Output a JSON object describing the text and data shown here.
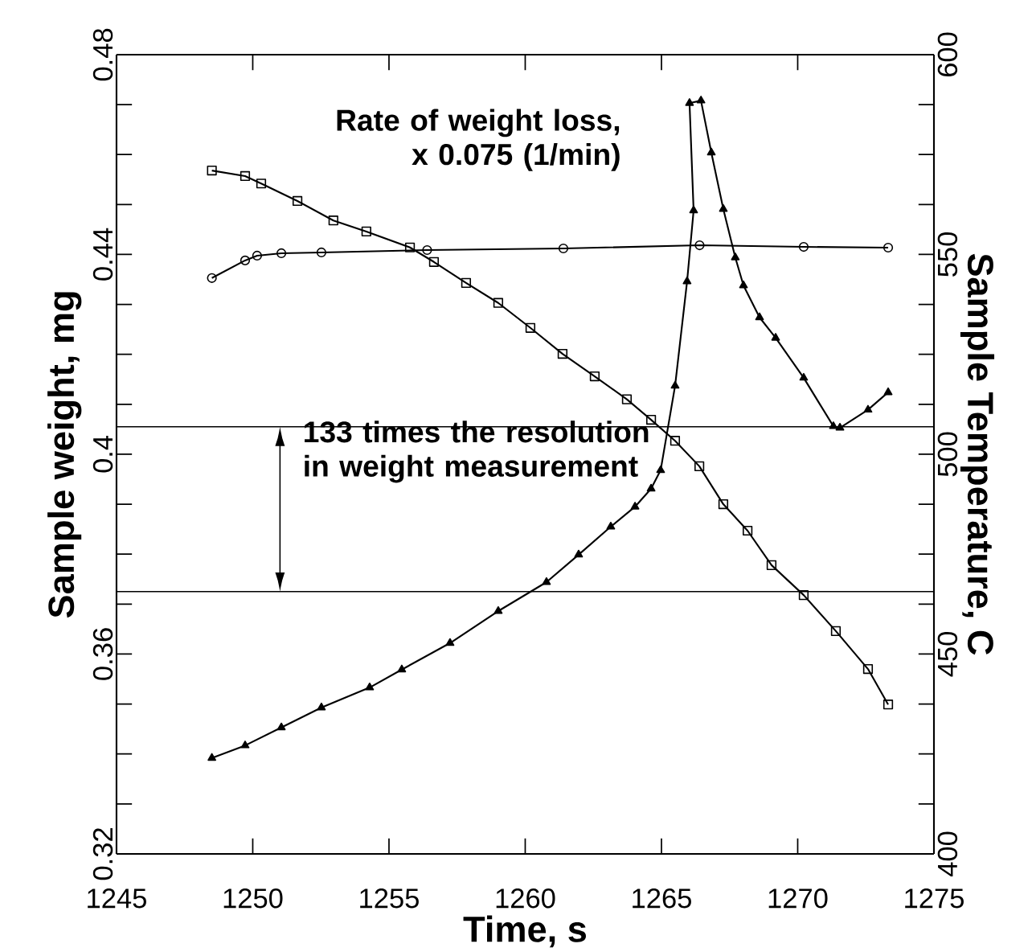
{
  "chart_data": {
    "type": "line",
    "xlabel": "Time,  s",
    "ylabel": "Sample weight,  mg",
    "y2label": "Sample  Temperature,  C",
    "xlim": [
      1245,
      1275
    ],
    "xticks": [
      1245,
      1250,
      1255,
      1260,
      1265,
      1270,
      1275
    ],
    "ylim": [
      0.32,
      0.48
    ],
    "yticks": [
      0.32,
      0.36,
      0.4,
      0.44,
      0.48
    ],
    "y2lim": [
      400,
      600
    ],
    "y2ticks": [
      400,
      450,
      500,
      550,
      600
    ],
    "grid": false,
    "series": [
      {
        "color": "#000000",
        "marker": "square",
        "x": [
          1248.5,
          1249.72,
          1250.31,
          1251.64,
          1252.96,
          1254.17,
          1255.77,
          1256.65,
          1257.83,
          1259.01,
          1260.19,
          1261.37,
          1262.55,
          1263.73,
          1264.62,
          1265.5,
          1266.39,
          1267.27,
          1268.16,
          1269.04,
          1270.22,
          1271.4,
          1272.58,
          1273.32
        ],
        "values": [
          0.4568,
          0.4557,
          0.4542,
          0.4507,
          0.4468,
          0.4446,
          0.4414,
          0.4385,
          0.4343,
          0.4303,
          0.4253,
          0.4201,
          0.4156,
          0.411,
          0.4069,
          0.4027,
          0.3976,
          0.39,
          0.3847,
          0.3778,
          0.3718,
          0.3646,
          0.357,
          0.3499
        ]
      },
      {
        "color": "#000000",
        "marker": "circle",
        "axis": "y2",
        "x": [
          1248.5,
          1249.72,
          1250.16,
          1251.05,
          1252.52,
          1256.4,
          1261.4,
          1266.4,
          1270.22,
          1273.32
        ],
        "values": [
          544.1,
          548.5,
          549.7,
          550.3,
          550.5,
          551.1,
          551.5,
          552.3,
          551.9,
          551.7
        ]
      },
      {
        "color": "#000000",
        "marker": "triangle",
        "x": [
          1248.5,
          1249.72,
          1251.05,
          1252.52,
          1254.29,
          1255.47,
          1257.24,
          1259.01,
          1260.78,
          1261.96,
          1263.14,
          1264.03,
          1264.62,
          1264.97,
          1265.5,
          1265.94,
          1266.18,
          1266.03,
          1266.45,
          1266.83,
          1267.27,
          1267.71,
          1268.01,
          1268.6,
          1269.19,
          1270.22,
          1271.31,
          1271.55,
          1272.58,
          1273.32
        ],
        "values": [
          0.3392,
          0.3417,
          0.3453,
          0.3493,
          0.3533,
          0.3569,
          0.3622,
          0.3686,
          0.3744,
          0.3799,
          0.3855,
          0.3895,
          0.3931,
          0.3968,
          0.4137,
          0.4346,
          0.4488,
          0.4703,
          0.4708,
          0.4604,
          0.4491,
          0.4394,
          0.4338,
          0.4274,
          0.4233,
          0.4153,
          0.4056,
          0.4053,
          0.4089,
          0.4124
        ]
      }
    ],
    "ref_lines": [
      {
        "axis": "y",
        "value": 0.4055
      },
      {
        "axis": "y",
        "value": 0.3725
      }
    ],
    "annotations": [
      "Rate of weight loss, x 0.075 (1/min)",
      "133 times the resolution in weight measurement"
    ]
  }
}
